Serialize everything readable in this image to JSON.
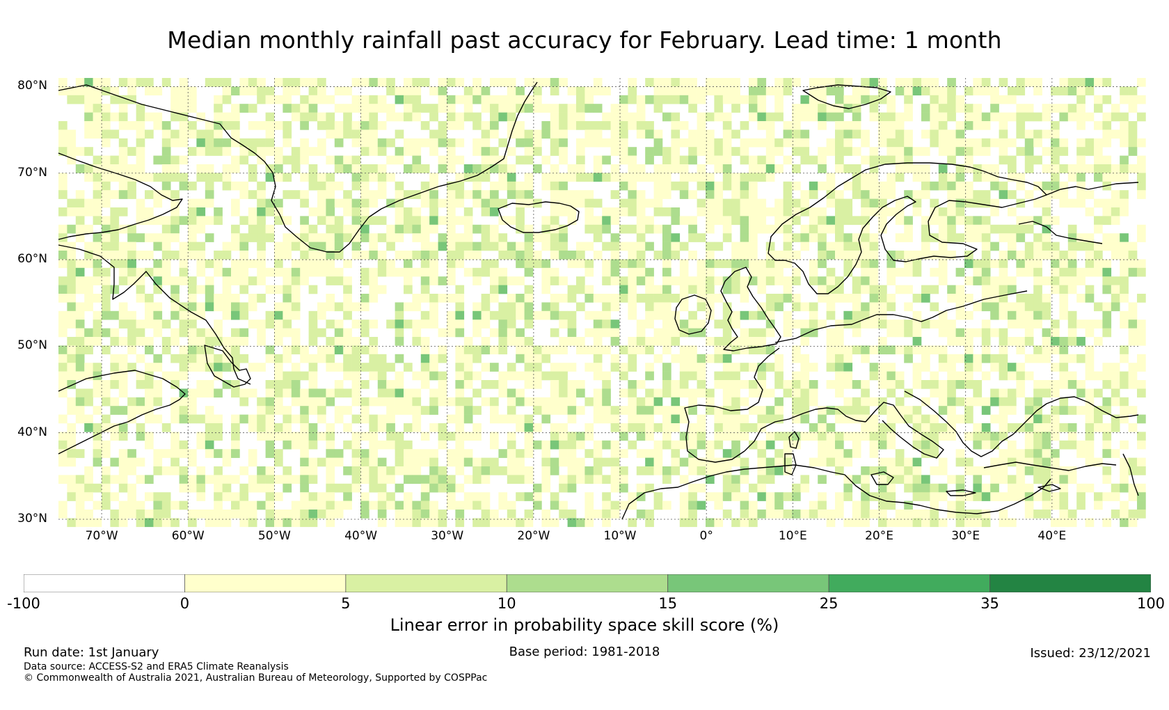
{
  "title": "Median monthly rainfall past accuracy for February. Lead time: 1 month",
  "map": {
    "extent": {
      "lon_min": -75,
      "lon_max": 50,
      "lat_min": 30,
      "lat_max": 81
    },
    "lat_ticks": [
      {
        "value": 80,
        "label": "80°N"
      },
      {
        "value": 70,
        "label": "70°N"
      },
      {
        "value": 60,
        "label": "60°N"
      },
      {
        "value": 50,
        "label": "50°N"
      },
      {
        "value": 40,
        "label": "40°N"
      },
      {
        "value": 30,
        "label": "30°N"
      }
    ],
    "lon_ticks": [
      {
        "value": -70,
        "label": "70°W"
      },
      {
        "value": -60,
        "label": "60°W"
      },
      {
        "value": -50,
        "label": "50°W"
      },
      {
        "value": -40,
        "label": "40°W"
      },
      {
        "value": -30,
        "label": "30°W"
      },
      {
        "value": -20,
        "label": "20°W"
      },
      {
        "value": -10,
        "label": "10°W"
      },
      {
        "value": 0,
        "label": "0°"
      },
      {
        "value": 10,
        "label": "10°E"
      },
      {
        "value": 20,
        "label": "20°E"
      },
      {
        "value": 30,
        "label": "30°E"
      },
      {
        "value": 40,
        "label": "40°E"
      }
    ],
    "gridlines": true,
    "coastline_color": "#000000"
  },
  "legend": {
    "bins": [
      {
        "from": -100,
        "to": 0,
        "color": "#ffffff"
      },
      {
        "from": 0,
        "to": 5,
        "color": "#ffffcc"
      },
      {
        "from": 5,
        "to": 10,
        "color": "#d9f0a3"
      },
      {
        "from": 10,
        "to": 15,
        "color": "#addd8e"
      },
      {
        "from": 15,
        "to": 25,
        "color": "#78c679"
      },
      {
        "from": 25,
        "to": 35,
        "color": "#41ab5d"
      },
      {
        "from": 35,
        "to": 100,
        "color": "#238443"
      }
    ],
    "tick_labels": [
      "-100",
      "0",
      "5",
      "10",
      "15",
      "25",
      "35",
      "100"
    ],
    "label": "Linear error in probability space skill score (%)"
  },
  "footer": {
    "run_date": "Run date: 1st January",
    "base_period": "Base period: 1981-2018",
    "issued": "Issued: 23/12/2021",
    "data_source": "Data source: ACCESS-S2 and ERA5 Climate Reanalysis",
    "copyright": "© Commonwealth of Australia 2021, Australian Bureau of Meteorology, Supported by COSPPac"
  }
}
